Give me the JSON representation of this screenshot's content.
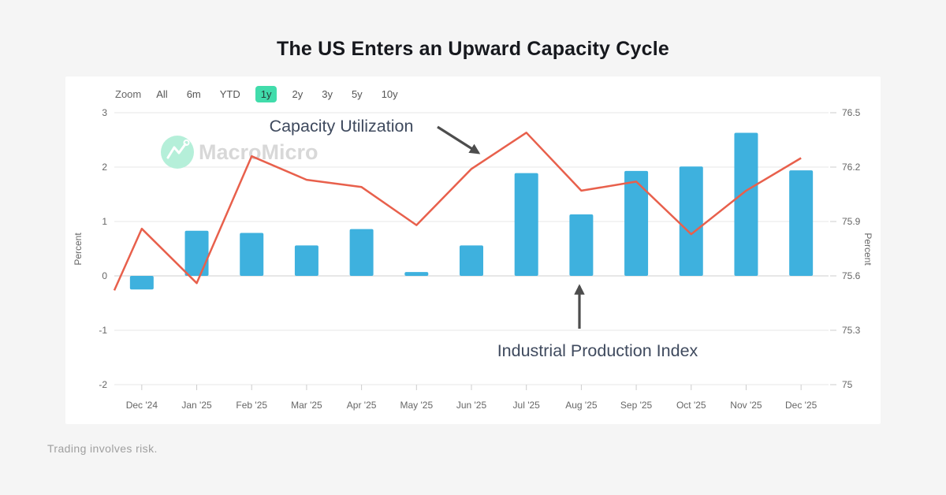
{
  "title": "The US Enters an Upward Capacity Cycle",
  "toolbar": {
    "zoom_label": "Zoom",
    "buttons": [
      "All",
      "6m",
      "YTD",
      "1y",
      "2y",
      "3y",
      "5y",
      "10y"
    ],
    "selected": "1y"
  },
  "watermark": {
    "brand": "MacroMicro"
  },
  "footer": {
    "disclaimer": "Trading involves risk."
  },
  "colors": {
    "bar": "#3EB1DE",
    "line": "#E8604C",
    "selected_range_button": "#41DCAB",
    "annotation_text": "#3F4A5E",
    "arrow": "#4D4D4D",
    "axis_text": "#666666",
    "gridline": "#E7E7E7",
    "watermark_mint": "#B5EFD9",
    "watermark_text": "#D8D8D8",
    "card_background": "#FFFFFF",
    "page_background": "#F5F5F5"
  },
  "chart_data": {
    "type": "bar",
    "subtype": "column + line combo, dual y-axis",
    "categories": [
      "Dec '24",
      "Jan '25",
      "Feb '25",
      "Mar '25",
      "Apr '25",
      "May '25",
      "Jun '25",
      "Jul '25",
      "Aug '25",
      "Sep '25",
      "Oct '25",
      "Nov '25",
      "Dec '25"
    ],
    "series": [
      {
        "name": "Industrial Production Index",
        "type": "bar",
        "axis": "left",
        "color": "#3EB1DE",
        "values": [
          -0.25,
          0.83,
          0.79,
          0.56,
          0.86,
          0.07,
          0.56,
          1.89,
          1.13,
          1.93,
          2.01,
          2.63,
          1.94
        ]
      },
      {
        "name": "Capacity Utilization",
        "type": "line",
        "axis": "right",
        "color": "#E8604C",
        "clipped_edge_value": 75.52,
        "values": [
          75.86,
          75.56,
          76.26,
          76.13,
          76.09,
          75.88,
          76.19,
          76.39,
          76.07,
          76.12,
          75.83,
          76.07,
          76.25
        ]
      }
    ],
    "left_axis": {
      "title": "Percent",
      "ticks": [
        3,
        2,
        1,
        0,
        -1,
        -2
      ],
      "range": [
        -2,
        3
      ]
    },
    "right_axis": {
      "title": "Percent",
      "ticks": [
        76.5,
        76.2,
        75.9,
        75.6,
        75.3,
        75
      ],
      "range": [
        75,
        76.5
      ]
    },
    "annotations": [
      {
        "text": "Capacity Utilization",
        "points_to": "line series"
      },
      {
        "text": "Industrial Production Index",
        "points_to": "bar series"
      }
    ],
    "grid": true,
    "legend_position": "none (inline annotations with arrows)"
  }
}
